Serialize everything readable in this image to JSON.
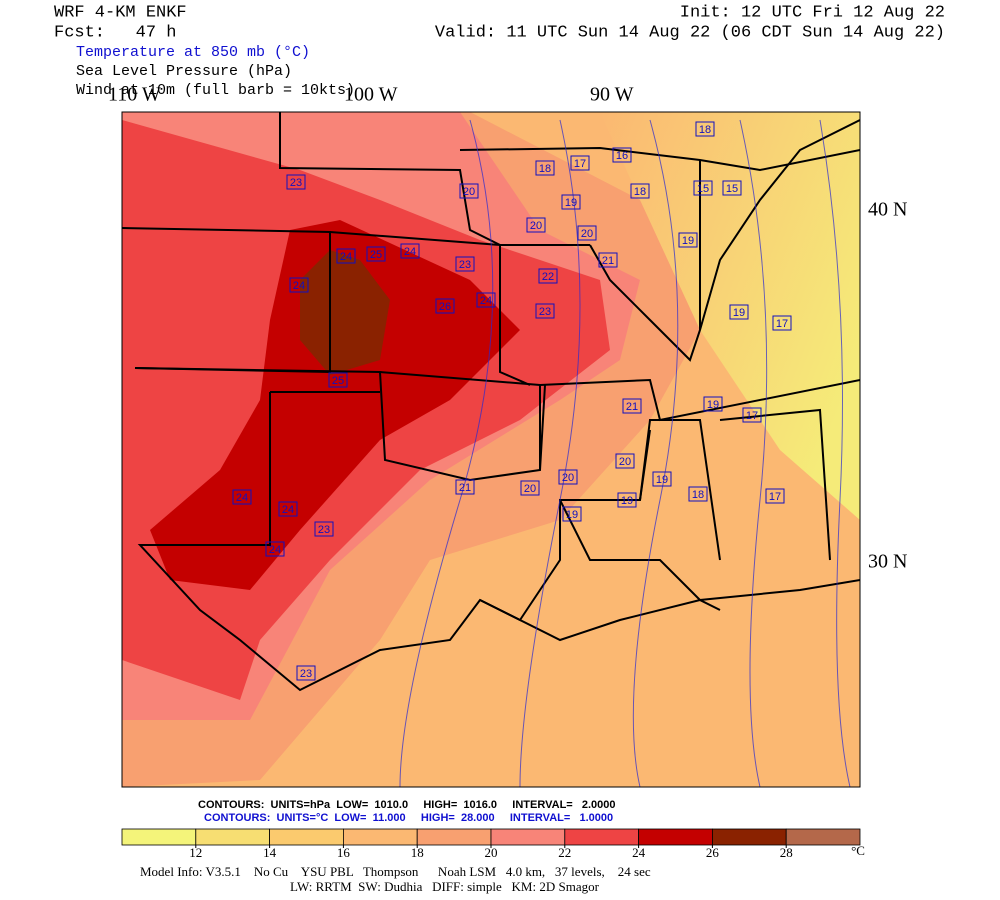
{
  "header": {
    "model": "WRF 4-KM ENKF",
    "init": "Init: 12 UTC Fri 12 Aug 22",
    "fcst": "Fcst:   47 h",
    "valid": "Valid: 11 UTC Sun 14 Aug 22 (06 CDT Sun 14 Aug 22)",
    "fields": [
      "Temperature at 850 mb (°C)",
      "Sea Level Pressure (hPa)",
      "Wind at 10m (full barb = 10kts)"
    ]
  },
  "map": {
    "lon_labels": [
      "110 W",
      "100 W",
      "90 W"
    ],
    "lat_labels": [
      "40 N",
      "30 N"
    ],
    "contour_labels": [
      18,
      17,
      16,
      18,
      20,
      19,
      18,
      15,
      15,
      23,
      20,
      20,
      19,
      21,
      24,
      25,
      24,
      23,
      22,
      24,
      26,
      23,
      19,
      17,
      24,
      25,
      21,
      19,
      17,
      20,
      19,
      20,
      20,
      21,
      18,
      17,
      19,
      19,
      24,
      24,
      23,
      24,
      23
    ]
  },
  "legend": {
    "slp_line": "CONTOURS:  UNITS=hPa  LOW=  1010.0     HIGH=  1016.0     INTERVAL=   2.0000",
    "temp_line": "CONTOURS:  UNITS=°C  LOW=  11.000     HIGH=  28.000     INTERVAL=   1.0000",
    "colorbar": {
      "ticks": [
        12,
        14,
        16,
        18,
        20,
        22,
        24,
        26,
        28
      ],
      "unit": "°C",
      "colors": [
        "#f4f47a",
        "#f7de72",
        "#fbca6e",
        "#fbb872",
        "#f8a070",
        "#f88478",
        "#ee4444",
        "#c40000",
        "#8a2200",
        "#b4684a"
      ]
    }
  },
  "footer": [
    "Model Info: V3.5.1    No Cu    YSU PBL   Thompson      Noah LSM   4.0 km,   37 levels,    24 sec",
    "LW: RRTM  SW: Dudhia   DIFF: simple   KM: 2D Smagor"
  ]
}
